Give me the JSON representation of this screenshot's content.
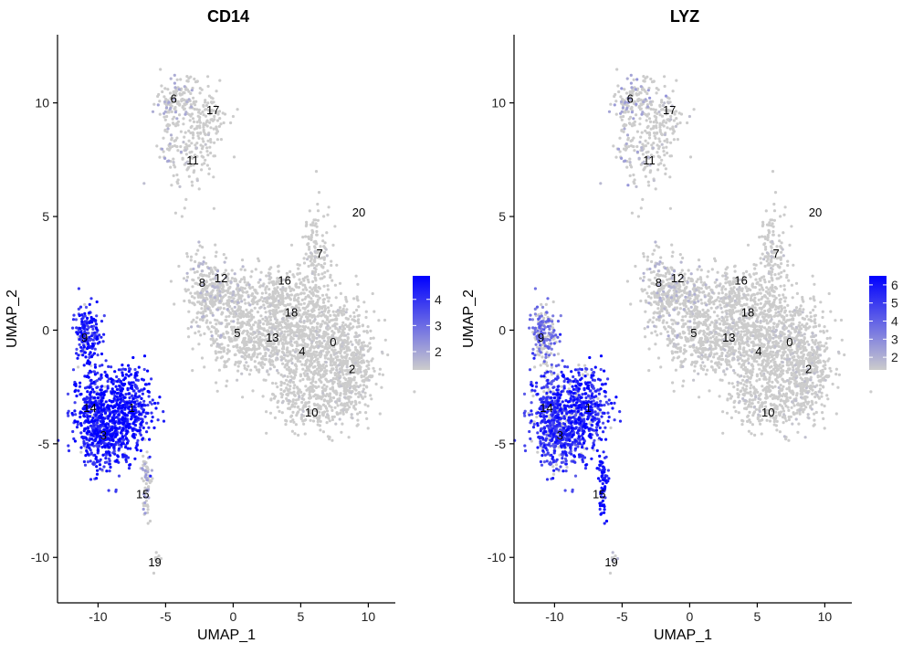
{
  "chart_data": {
    "type": "scatter",
    "layout": "two-panel UMAP feature plot",
    "xlabel": "UMAP_1",
    "ylabel": "UMAP_2",
    "xlim": [
      -13,
      12
    ],
    "ylim": [
      -12,
      13
    ],
    "x_ticks": [
      -10,
      -5,
      0,
      5,
      10
    ],
    "y_ticks": [
      -10,
      -5,
      0,
      5,
      10
    ],
    "x_tick_labels": [
      "-10",
      "-5",
      "0",
      "5",
      "10"
    ],
    "y_tick_labels": [
      "-10",
      "-5",
      "0",
      "5",
      "10"
    ],
    "low_color": "#cccccc",
    "high_color": "#0000ff",
    "grid": false,
    "cluster_labels": [
      {
        "label": "6",
        "x": -4.4,
        "y": 10.2
      },
      {
        "label": "17",
        "x": -1.5,
        "y": 9.7
      },
      {
        "label": "11",
        "x": -3.0,
        "y": 7.5
      },
      {
        "label": "20",
        "x": 9.3,
        "y": 5.2
      },
      {
        "label": "7",
        "x": 6.4,
        "y": 3.4
      },
      {
        "label": "8",
        "x": -2.3,
        "y": 2.1
      },
      {
        "label": "12",
        "x": -0.9,
        "y": 2.3
      },
      {
        "label": "16",
        "x": 3.8,
        "y": 2.2
      },
      {
        "label": "18",
        "x": 4.3,
        "y": 0.8
      },
      {
        "label": "5",
        "x": 0.3,
        "y": -0.1
      },
      {
        "label": "13",
        "x": 2.9,
        "y": -0.3
      },
      {
        "label": "4",
        "x": 5.1,
        "y": -0.9
      },
      {
        "label": "0",
        "x": 7.4,
        "y": -0.5
      },
      {
        "label": "2",
        "x": 8.8,
        "y": -1.7
      },
      {
        "label": "10",
        "x": 5.8,
        "y": -3.6
      },
      {
        "label": "9",
        "x": -11.0,
        "y": -0.3
      },
      {
        "label": "14",
        "x": -10.6,
        "y": -3.4
      },
      {
        "label": "1",
        "x": -7.5,
        "y": -3.4
      },
      {
        "label": "3",
        "x": -9.6,
        "y": -4.6
      },
      {
        "label": "15",
        "x": -6.7,
        "y": -7.2
      },
      {
        "label": "19",
        "x": -5.8,
        "y": -10.2
      }
    ],
    "panels": [
      {
        "title": "CD14",
        "color_range": [
          1.3,
          4.9
        ],
        "legend_ticks": [
          2,
          3,
          4
        ],
        "legend_tick_labels": [
          "2",
          "3",
          "4"
        ],
        "cluster_expression": {
          "9": 0.8,
          "14": 0.8,
          "1": 0.85,
          "3": 0.8,
          "15": 0.2,
          "19": 0.0,
          "6": 0.15,
          "11": 0.05,
          "17": 0.0,
          "8": 0.1,
          "12": 0.08,
          "other": 0.03
        }
      },
      {
        "title": "LYZ",
        "color_range": [
          1.3,
          6.5
        ],
        "legend_ticks": [
          2,
          3,
          4,
          5,
          6
        ],
        "legend_tick_labels": [
          "2",
          "3",
          "4",
          "5",
          "6"
        ],
        "cluster_expression": {
          "9": 0.45,
          "14": 0.7,
          "1": 0.8,
          "3": 0.7,
          "15": 0.9,
          "19": 0.1,
          "6": 0.2,
          "11": 0.08,
          "17": 0.05,
          "8": 0.12,
          "12": 0.1,
          "other": 0.04
        }
      }
    ]
  }
}
